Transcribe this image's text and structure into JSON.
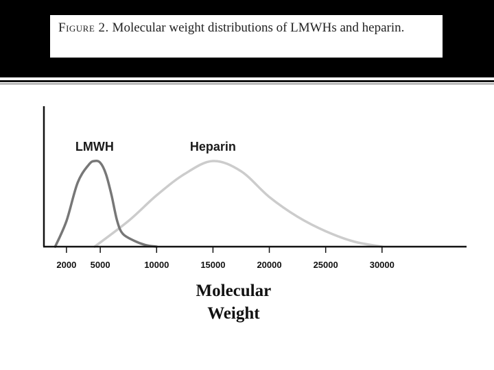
{
  "caption": {
    "label": "Figure 2.",
    "text": "Molecular weight distributions of LMWHs and heparin."
  },
  "chart_data": {
    "type": "line",
    "xlabel": "Molecular Weight",
    "ylabel": "",
    "xlim": [
      0,
      37500
    ],
    "ylim": [
      0,
      1.0
    ],
    "x_ticks": [
      2000,
      5000,
      10000,
      15000,
      20000,
      25000,
      30000
    ],
    "grid": false,
    "series": [
      {
        "name": "LMWH",
        "color": "#777777",
        "x": [
          1000,
          2000,
          3000,
          4000,
          4500,
          5000,
          5500,
          6000,
          6500,
          7000,
          8000,
          9000,
          10000
        ],
        "y": [
          0.0,
          0.3,
          0.75,
          0.96,
          1.0,
          0.98,
          0.85,
          0.6,
          0.3,
          0.15,
          0.07,
          0.02,
          0.0
        ]
      },
      {
        "name": "Heparin",
        "color": "#cccccc",
        "x": [
          4500,
          7500,
          10000,
          12500,
          15000,
          17500,
          20000,
          22500,
          25000,
          27500,
          30000
        ],
        "y": [
          0.0,
          0.3,
          0.6,
          0.85,
          1.0,
          0.88,
          0.58,
          0.35,
          0.18,
          0.06,
          0.0
        ]
      }
    ]
  }
}
